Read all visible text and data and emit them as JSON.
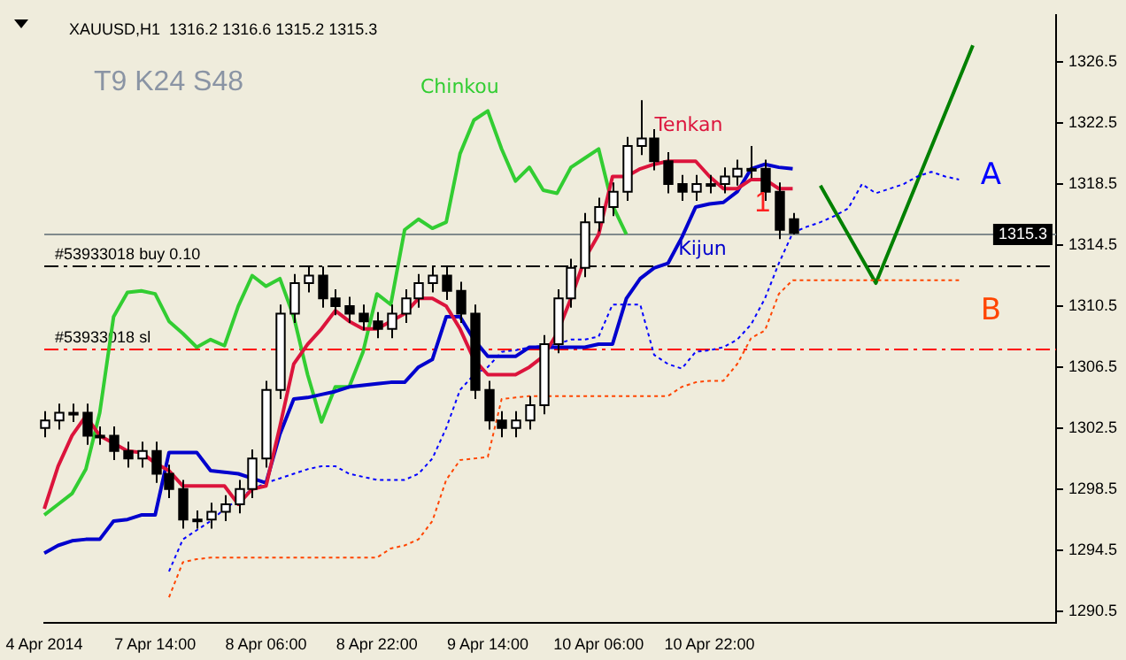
{
  "chart_data": {
    "type": "candlestick",
    "title": "XAUUSD,H1  1316.2 1316.6 1315.2 1315.3",
    "categories": [
      "4 Apr 2014",
      null,
      null,
      null,
      null,
      null,
      null,
      null,
      "7 Apr 14:00",
      null,
      null,
      null,
      null,
      null,
      null,
      null,
      "8 Apr 06:00",
      null,
      null,
      null,
      null,
      null,
      null,
      null,
      "8 Apr 22:00",
      null,
      null,
      null,
      null,
      null,
      null,
      null,
      "9 Apr 14:00",
      null,
      null,
      null,
      null,
      null,
      null,
      null,
      "10 Apr 06:00",
      null,
      null,
      null,
      null,
      null,
      null,
      null,
      "10 Apr 22:00",
      null,
      null,
      null,
      null,
      null,
      null,
      null,
      null,
      null,
      null,
      null,
      null,
      null,
      null,
      null,
      null,
      null,
      null,
      null,
      null,
      null,
      null,
      null,
      null,
      null
    ],
    "ohlc": [
      [
        1302.5,
        1303.6,
        1301.9,
        1303.0
      ],
      [
        1303.0,
        1304.1,
        1302.4,
        1303.5
      ],
      [
        1303.5,
        1304.1,
        1302.9,
        1303.5
      ],
      [
        1303.5,
        1304.1,
        1301.4,
        1302.0
      ],
      [
        1302.0,
        1302.6,
        1301.4,
        1302.0
      ],
      [
        1302.0,
        1302.6,
        1300.4,
        1301.0
      ],
      [
        1301.0,
        1301.6,
        1299.9,
        1300.5
      ],
      [
        1300.5,
        1301.6,
        1299.9,
        1301.0
      ],
      [
        1301.0,
        1301.6,
        1298.9,
        1299.5
      ],
      [
        1299.5,
        1300.1,
        1297.9,
        1298.5
      ],
      [
        1298.5,
        1299.1,
        1295.9,
        1296.5
      ],
      [
        1296.5,
        1297.1,
        1295.9,
        1296.5
      ],
      [
        1296.5,
        1297.6,
        1295.9,
        1297.0
      ],
      [
        1297.0,
        1298.1,
        1296.4,
        1297.5
      ],
      [
        1297.5,
        1299.1,
        1296.9,
        1298.5
      ],
      [
        1298.5,
        1301.1,
        1297.9,
        1300.5
      ],
      [
        1300.5,
        1305.6,
        1299.9,
        1305.0
      ],
      [
        1305.0,
        1310.6,
        1304.4,
        1310.0
      ],
      [
        1310.0,
        1312.6,
        1309.4,
        1312.0
      ],
      [
        1312.0,
        1313.1,
        1311.4,
        1312.5
      ],
      [
        1312.5,
        1313.1,
        1310.4,
        1311.0
      ],
      [
        1311.0,
        1311.6,
        1309.9,
        1310.5
      ],
      [
        1310.5,
        1311.1,
        1309.4,
        1310.0
      ],
      [
        1310.0,
        1310.6,
        1308.9,
        1309.5
      ],
      [
        1309.5,
        1310.1,
        1308.4,
        1309.0
      ],
      [
        1309.0,
        1310.6,
        1308.4,
        1310.0
      ],
      [
        1310.0,
        1311.6,
        1309.4,
        1311.0
      ],
      [
        1311.0,
        1312.6,
        1310.4,
        1312.0
      ],
      [
        1312.0,
        1313.1,
        1311.4,
        1312.5
      ],
      [
        1312.5,
        1313.1,
        1310.9,
        1311.5
      ],
      [
        1311.5,
        1312.1,
        1309.4,
        1310.0
      ],
      [
        1310.0,
        1310.6,
        1304.4,
        1305.0
      ],
      [
        1305.0,
        1305.6,
        1302.4,
        1303.0
      ],
      [
        1303.0,
        1303.6,
        1301.9,
        1302.5
      ],
      [
        1302.5,
        1303.6,
        1301.9,
        1303.0
      ],
      [
        1303.0,
        1304.6,
        1302.4,
        1304.0
      ],
      [
        1304.0,
        1308.6,
        1303.4,
        1308.0
      ],
      [
        1308.0,
        1311.6,
        1307.4,
        1311.0
      ],
      [
        1311.0,
        1313.6,
        1310.4,
        1313.0
      ],
      [
        1313.0,
        1316.6,
        1312.4,
        1316.0
      ],
      [
        1316.0,
        1317.6,
        1315.4,
        1317.0
      ],
      [
        1317.0,
        1318.6,
        1316.4,
        1318.0
      ],
      [
        1318.0,
        1321.6,
        1317.4,
        1321.0
      ],
      [
        1321.0,
        1324.0,
        1320.4,
        1321.5
      ],
      [
        1321.5,
        1322.1,
        1319.4,
        1320.0
      ],
      [
        1320.0,
        1320.6,
        1317.9,
        1318.5
      ],
      [
        1318.5,
        1319.1,
        1317.4,
        1318.0
      ],
      [
        1318.0,
        1319.1,
        1317.4,
        1318.5
      ],
      [
        1318.5,
        1319.1,
        1317.9,
        1318.5
      ],
      [
        1318.5,
        1319.6,
        1317.9,
        1319.0
      ],
      [
        1319.0,
        1320.1,
        1318.4,
        1319.5
      ],
      [
        1319.5,
        1321.0,
        1318.9,
        1319.5
      ],
      [
        1319.5,
        1320.1,
        1317.4,
        1318.0
      ],
      [
        1318.0,
        1318.6,
        1314.9,
        1315.5
      ],
      [
        1316.2,
        1316.6,
        1315.2,
        1315.3
      ],
      null,
      null,
      null,
      null,
      null,
      null,
      null,
      null,
      null,
      null,
      null,
      null,
      null,
      null,
      null,
      null,
      null,
      null,
      null
    ],
    "series": [
      {
        "name": "Tenkan",
        "type": "line",
        "color": "#dc143c",
        "values": [
          1297.2,
          1300,
          1302,
          1303.3,
          1302,
          1301.5,
          1301,
          1300.9,
          1300.2,
          1299.7,
          1298.7,
          1298.7,
          1298.7,
          1298.7,
          1297.5,
          1298.5,
          1298.7,
          1302.6,
          1306.7,
          1308,
          1309,
          1310.2,
          1309.5,
          1309,
          1309,
          1309.5,
          1310,
          1311,
          1311,
          1310.5,
          1309,
          1307,
          1306,
          1306,
          1306,
          1306.5,
          1307.2,
          1308.7,
          1311,
          1313.6,
          1315.2,
          1319,
          1319,
          1319.5,
          1319.8,
          1320,
          1320,
          1320,
          1319,
          1318.2,
          1318.2,
          1318.8,
          1318.8,
          1318.2,
          1318.2,
          null,
          null,
          null,
          null,
          null,
          null,
          null,
          null,
          null,
          null,
          null,
          null,
          null,
          null,
          null,
          null,
          null,
          null,
          null
        ]
      },
      {
        "name": "Kijun",
        "type": "line",
        "color": "#0000cd",
        "values": [
          1294.3,
          1294.8,
          1295.1,
          1295.2,
          1295.2,
          1296.4,
          1296.5,
          1296.8,
          1296.8,
          1300.9,
          1300.9,
          1300.9,
          1299.7,
          1299.6,
          1299.5,
          1299.2,
          1298.9,
          1302.1,
          1304.4,
          1304.5,
          1304.7,
          1304.9,
          1305.2,
          1305.3,
          1305.4,
          1305.5,
          1305.5,
          1306.5,
          1307,
          1309.8,
          1309.8,
          1308.3,
          1307.2,
          1307.2,
          1307.2,
          1307.8,
          1307.8,
          1307.8,
          1307.8,
          1307.8,
          1308,
          1308,
          1311,
          1312.3,
          1313,
          1313.3,
          1315,
          1317,
          1317.2,
          1317.3,
          1318,
          1319.5,
          1319.8,
          1319.6,
          1319.5,
          null,
          null,
          null,
          null,
          null,
          null,
          null,
          null,
          null,
          null,
          null,
          null,
          null,
          null,
          null,
          null,
          null,
          null,
          null
        ]
      },
      {
        "name": "Chinkou",
        "type": "line",
        "color": "#32cd32",
        "values": [
          1296.8,
          1297.5,
          1298.2,
          1299.8,
          1303.5,
          1309.8,
          1311.4,
          1311.5,
          1311.3,
          1309.5,
          1308.7,
          1307.8,
          1308.3,
          1307.9,
          1310.5,
          1312.5,
          1311.8,
          1312.3,
          1309.8,
          1306,
          1302.9,
          1305.2,
          1305.2,
          1307.5,
          1311.3,
          1310.6,
          1315.5,
          1316.2,
          1315.6,
          1316,
          1320.5,
          1322.7,
          1323.3,
          1320.8,
          1318.7,
          1319.6,
          1318.1,
          1317.9,
          1319.6,
          1320.2,
          1320.8,
          1317.1,
          1315.2,
          null,
          null,
          null,
          null,
          null,
          null,
          null,
          null,
          null,
          null,
          null,
          null,
          null,
          null,
          null,
          null,
          null,
          null,
          null,
          null,
          null,
          null,
          null,
          null,
          null,
          null,
          null,
          null,
          null,
          null,
          null
        ]
      },
      {
        "name": "A",
        "type": "line",
        "color": "#0000ff",
        "line_style": "dotted",
        "values": [
          null,
          null,
          null,
          null,
          null,
          null,
          null,
          null,
          null,
          1293.1,
          1295.2,
          1295.8,
          1296.4,
          1297.2,
          1297.8,
          1298.5,
          1298.9,
          1299.2,
          1299.5,
          1299.8,
          1300,
          1300,
          1299.5,
          1299.3,
          1299.1,
          1299.1,
          1299.1,
          1299.5,
          1300.5,
          1302.5,
          1305,
          1306,
          1306.5,
          1307.5,
          1307.6,
          1307.8,
          null,
          1308,
          1308.3,
          1308.3,
          1308.5,
          1310.6,
          1310.6,
          1310.6,
          1307.3,
          1306.7,
          1306.4,
          1307.5,
          1307.6,
          1307.8,
          1308.3,
          1309.3,
          1311,
          1313.3,
          1315.3,
          1315.7,
          1316,
          1316.4,
          1316.9,
          1318.5,
          1317.9,
          1318.2,
          1318.5,
          1319,
          1319.3,
          1319,
          1318.8,
          null,
          null,
          null,
          null,
          null,
          null,
          null
        ]
      },
      {
        "name": "B",
        "type": "line",
        "color": "#ff4500",
        "line_style": "dotted",
        "values": [
          null,
          null,
          null,
          null,
          null,
          null,
          null,
          null,
          null,
          1291.4,
          1293.7,
          1293.9,
          1294,
          1294,
          1294,
          1294,
          1294,
          1294,
          1294,
          1294,
          1294,
          1294,
          1294,
          1294,
          1294,
          1294.6,
          1294.8,
          1295.2,
          1296.4,
          1299.1,
          1300.4,
          1300.5,
          1300.6,
          1304.4,
          1304.5,
          1304.6,
          1304.6,
          1304.6,
          1304.6,
          1304.6,
          1304.6,
          1304.6,
          1304.6,
          1304.6,
          1304.6,
          1304.6,
          1305.2,
          1305.5,
          1305.6,
          1305.6,
          1306.7,
          1308.4,
          1308.9,
          1311.3,
          1312.2,
          1312.2,
          1312.2,
          1312.2,
          1312.2,
          1312.2,
          1312.2,
          1312.2,
          1312.2,
          1312.2,
          1312.2,
          1312.2,
          1312.2,
          null,
          null,
          null,
          null,
          null,
          null,
          null
        ]
      },
      {
        "type": "line",
        "color": "#008000",
        "values": [
          null,
          null,
          null,
          null,
          null,
          null,
          null,
          null,
          null,
          null,
          null,
          null,
          null,
          null,
          null,
          null,
          null,
          null,
          null,
          null,
          null,
          null,
          null,
          null,
          null,
          null,
          null,
          null,
          null,
          null,
          null,
          null,
          null,
          null,
          null,
          null,
          null,
          null,
          null,
          null,
          null,
          null,
          null,
          null,
          null,
          null,
          null,
          null,
          null,
          null,
          null,
          null,
          null,
          null,
          null,
          null,
          1318.4,
          null,
          null,
          null,
          1312.0,
          null,
          null,
          null,
          null,
          null,
          null,
          1327.6,
          null,
          null,
          null,
          null,
          null,
          null
        ]
      }
    ],
    "ylim": [
      1289.7,
      1329.6
    ],
    "yticks": [
      1290.5,
      1294.5,
      1298.5,
      1302.5,
      1306.5,
      1310.5,
      1314.5,
      1318.5,
      1322.5,
      1326.5
    ],
    "ref_lines": [
      {
        "axis": "y",
        "value": 1315.3,
        "label": "1315.3",
        "color": "#808a8c",
        "line_style": "solid"
      },
      {
        "axis": "y",
        "value": 1313.2,
        "label": "#53933018 buy 0.10",
        "color": "#000000",
        "line_style": "dashed"
      },
      {
        "axis": "y",
        "value": 1307.75,
        "label": "#53933018 sl",
        "color": "#ff0000",
        "line_style": "dashed"
      }
    ],
    "annotations": [
      "T9 K24 S48",
      "1"
    ],
    "marker": "none",
    "grid": false,
    "legend": false
  }
}
